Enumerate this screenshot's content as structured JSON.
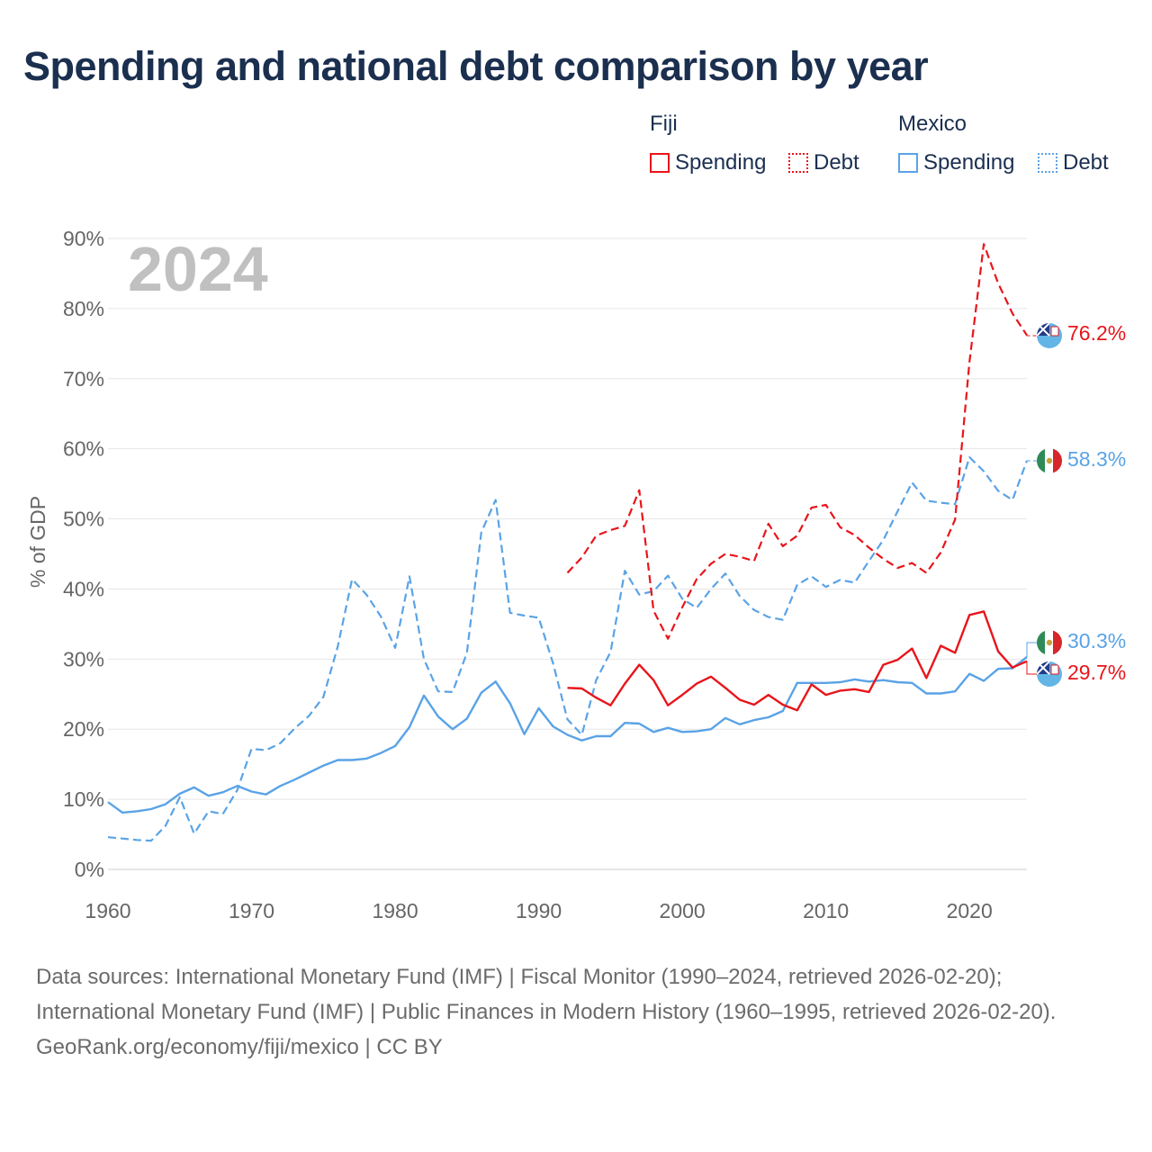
{
  "title": "Spending and national debt comparison by year",
  "legend": {
    "fiji": {
      "group": "Fiji",
      "spending": "Spending",
      "debt": "Debt"
    },
    "mexico": {
      "group": "Mexico",
      "spending": "Spending",
      "debt": "Debt"
    }
  },
  "colors": {
    "fiji": "#e8151b",
    "mexico": "#5aa3e6",
    "grid": "#e6e6e6",
    "axis_text": "#666666",
    "year_watermark": "#c0c0c0"
  },
  "footer": {
    "sources": "Data sources: International Monetary Fund (IMF) | Fiscal Monitor (1990–2024, retrieved 2026-02-20); International Monetary Fund (IMF) | Public Finances in Modern History (1960–1995, retrieved 2026-02-20).",
    "credit": "GeoRank.org/economy/fiji/mexico | CC BY"
  },
  "chart_data": {
    "type": "line",
    "title": "Spending and national debt comparison by year",
    "year_label": "2024",
    "ylabel": "% of GDP",
    "xlabel": "",
    "xlim": [
      1960,
      2024
    ],
    "ylim": [
      0,
      90
    ],
    "x_ticks": [
      "1960",
      "1970",
      "1980",
      "1990",
      "2000",
      "2010",
      "2020"
    ],
    "y_ticks": [
      "0%",
      "10%",
      "20%",
      "30%",
      "40%",
      "50%",
      "60%",
      "70%",
      "80%",
      "90%"
    ],
    "series": [
      {
        "name": "Mexico Debt",
        "country": "Mexico",
        "measure": "Debt",
        "style": "dashed",
        "color": "#5aa3e6",
        "end_label": "58.3%",
        "points": [
          [
            1960,
            4.6
          ],
          [
            1961,
            4.4
          ],
          [
            1962,
            4.2
          ],
          [
            1963,
            4.1
          ],
          [
            1964,
            6.2
          ],
          [
            1965,
            10.3
          ],
          [
            1966,
            5.1
          ],
          [
            1967,
            8.3
          ],
          [
            1968,
            7.9
          ],
          [
            1969,
            11.3
          ],
          [
            1970,
            17.2
          ],
          [
            1971,
            17.0
          ],
          [
            1972,
            18.0
          ],
          [
            1973,
            20.1
          ],
          [
            1974,
            21.9
          ],
          [
            1975,
            24.6
          ],
          [
            1976,
            31.8
          ],
          [
            1977,
            41.4
          ],
          [
            1978,
            39.2
          ],
          [
            1979,
            36.1
          ],
          [
            1980,
            31.6
          ],
          [
            1981,
            41.8
          ],
          [
            1982,
            30.0
          ],
          [
            1983,
            25.4
          ],
          [
            1984,
            25.3
          ],
          [
            1985,
            30.9
          ],
          [
            1986,
            48.1
          ],
          [
            1987,
            52.7
          ],
          [
            1988,
            36.6
          ],
          [
            1989,
            36.2
          ],
          [
            1990,
            35.9
          ],
          [
            1991,
            29.4
          ],
          [
            1992,
            21.4
          ],
          [
            1993,
            19.2
          ],
          [
            1994,
            27.0
          ],
          [
            1995,
            31.0
          ],
          [
            1996,
            42.6
          ],
          [
            1997,
            39.2
          ],
          [
            1998,
            39.7
          ],
          [
            1999,
            41.9
          ],
          [
            2000,
            38.6
          ],
          [
            2001,
            37.3
          ],
          [
            2002,
            40.0
          ],
          [
            2003,
            42.2
          ],
          [
            2004,
            39.0
          ],
          [
            2005,
            37.0
          ],
          [
            2006,
            36.0
          ],
          [
            2007,
            35.6
          ],
          [
            2008,
            40.6
          ],
          [
            2009,
            41.8
          ],
          [
            2010,
            40.3
          ],
          [
            2011,
            41.3
          ],
          [
            2012,
            40.9
          ],
          [
            2013,
            44.0
          ],
          [
            2014,
            47.0
          ],
          [
            2015,
            51.1
          ],
          [
            2016,
            55.2
          ],
          [
            2017,
            52.6
          ],
          [
            2018,
            52.3
          ],
          [
            2019,
            52.1
          ],
          [
            2020,
            58.8
          ],
          [
            2021,
            56.8
          ],
          [
            2022,
            54.0
          ],
          [
            2023,
            52.7
          ],
          [
            2024,
            58.3
          ]
        ]
      },
      {
        "name": "Mexico Spending",
        "country": "Mexico",
        "measure": "Spending",
        "style": "solid",
        "color": "#5aa3e6",
        "end_label": "30.3%",
        "points": [
          [
            1960,
            9.6
          ],
          [
            1961,
            8.1
          ],
          [
            1962,
            8.3
          ],
          [
            1963,
            8.6
          ],
          [
            1964,
            9.3
          ],
          [
            1965,
            10.8
          ],
          [
            1966,
            11.7
          ],
          [
            1967,
            10.5
          ],
          [
            1968,
            11.0
          ],
          [
            1969,
            11.9
          ],
          [
            1970,
            11.1
          ],
          [
            1971,
            10.7
          ],
          [
            1972,
            11.9
          ],
          [
            1973,
            12.8
          ],
          [
            1974,
            13.8
          ],
          [
            1975,
            14.8
          ],
          [
            1976,
            15.6
          ],
          [
            1977,
            15.6
          ],
          [
            1978,
            15.8
          ],
          [
            1979,
            16.6
          ],
          [
            1980,
            17.6
          ],
          [
            1981,
            20.3
          ],
          [
            1982,
            24.8
          ],
          [
            1983,
            21.8
          ],
          [
            1984,
            20.0
          ],
          [
            1985,
            21.5
          ],
          [
            1986,
            25.2
          ],
          [
            1987,
            26.8
          ],
          [
            1988,
            23.7
          ],
          [
            1989,
            19.3
          ],
          [
            1990,
            23.0
          ],
          [
            1991,
            20.4
          ],
          [
            1992,
            19.2
          ],
          [
            1993,
            18.4
          ],
          [
            1994,
            19.0
          ],
          [
            1995,
            19.0
          ],
          [
            1996,
            20.9
          ],
          [
            1997,
            20.8
          ],
          [
            1998,
            19.6
          ],
          [
            1999,
            20.2
          ],
          [
            2000,
            19.6
          ],
          [
            2001,
            19.7
          ],
          [
            2002,
            20.0
          ],
          [
            2003,
            21.6
          ],
          [
            2004,
            20.7
          ],
          [
            2005,
            21.3
          ],
          [
            2006,
            21.7
          ],
          [
            2007,
            22.6
          ],
          [
            2008,
            26.6
          ],
          [
            2009,
            26.6
          ],
          [
            2010,
            26.6
          ],
          [
            2011,
            26.7
          ],
          [
            2012,
            27.1
          ],
          [
            2013,
            26.8
          ],
          [
            2014,
            27.0
          ],
          [
            2015,
            26.7
          ],
          [
            2016,
            26.6
          ],
          [
            2017,
            25.1
          ],
          [
            2018,
            25.1
          ],
          [
            2019,
            25.4
          ],
          [
            2020,
            27.9
          ],
          [
            2021,
            26.9
          ],
          [
            2022,
            28.6
          ],
          [
            2023,
            28.7
          ],
          [
            2024,
            30.3
          ]
        ]
      },
      {
        "name": "Fiji Debt",
        "country": "Fiji",
        "measure": "Debt",
        "style": "dashed",
        "color": "#e8151b",
        "end_label": "76.2%",
        "points": [
          [
            1992,
            42.3
          ],
          [
            1993,
            44.5
          ],
          [
            1994,
            47.6
          ],
          [
            1995,
            48.4
          ],
          [
            1996,
            49.0
          ],
          [
            1997,
            54.1
          ],
          [
            1998,
            36.9
          ],
          [
            1999,
            32.9
          ],
          [
            2000,
            37.4
          ],
          [
            2001,
            41.4
          ],
          [
            2002,
            43.6
          ],
          [
            2003,
            45.0
          ],
          [
            2004,
            44.6
          ],
          [
            2005,
            44.0
          ],
          [
            2006,
            49.3
          ],
          [
            2007,
            46.1
          ],
          [
            2008,
            47.6
          ],
          [
            2009,
            51.6
          ],
          [
            2010,
            52.0
          ],
          [
            2011,
            48.8
          ],
          [
            2012,
            47.7
          ],
          [
            2013,
            45.9
          ],
          [
            2014,
            44.3
          ],
          [
            2015,
            43.0
          ],
          [
            2016,
            43.7
          ],
          [
            2017,
            42.3
          ],
          [
            2018,
            45.2
          ],
          [
            2019,
            49.9
          ],
          [
            2020,
            72.4
          ],
          [
            2021,
            89.2
          ],
          [
            2022,
            83.6
          ],
          [
            2023,
            79.3
          ],
          [
            2024,
            76.2
          ]
        ]
      },
      {
        "name": "Fiji Spending",
        "country": "Fiji",
        "measure": "Spending",
        "style": "solid",
        "color": "#e8151b",
        "end_label": "29.7%",
        "points": [
          [
            1992,
            25.9
          ],
          [
            1993,
            25.8
          ],
          [
            1994,
            24.5
          ],
          [
            1995,
            23.4
          ],
          [
            1996,
            26.5
          ],
          [
            1997,
            29.2
          ],
          [
            1998,
            27.0
          ],
          [
            1999,
            23.4
          ],
          [
            2000,
            24.9
          ],
          [
            2001,
            26.5
          ],
          [
            2002,
            27.5
          ],
          [
            2003,
            25.9
          ],
          [
            2004,
            24.2
          ],
          [
            2005,
            23.5
          ],
          [
            2006,
            24.9
          ],
          [
            2007,
            23.5
          ],
          [
            2008,
            22.7
          ],
          [
            2009,
            26.4
          ],
          [
            2010,
            24.9
          ],
          [
            2011,
            25.5
          ],
          [
            2012,
            25.7
          ],
          [
            2013,
            25.3
          ],
          [
            2014,
            29.2
          ],
          [
            2015,
            29.9
          ],
          [
            2016,
            31.5
          ],
          [
            2017,
            27.3
          ],
          [
            2018,
            31.9
          ],
          [
            2019,
            30.9
          ],
          [
            2020,
            36.3
          ],
          [
            2021,
            36.8
          ],
          [
            2022,
            31.1
          ],
          [
            2023,
            28.8
          ],
          [
            2024,
            29.7
          ]
        ]
      }
    ]
  }
}
